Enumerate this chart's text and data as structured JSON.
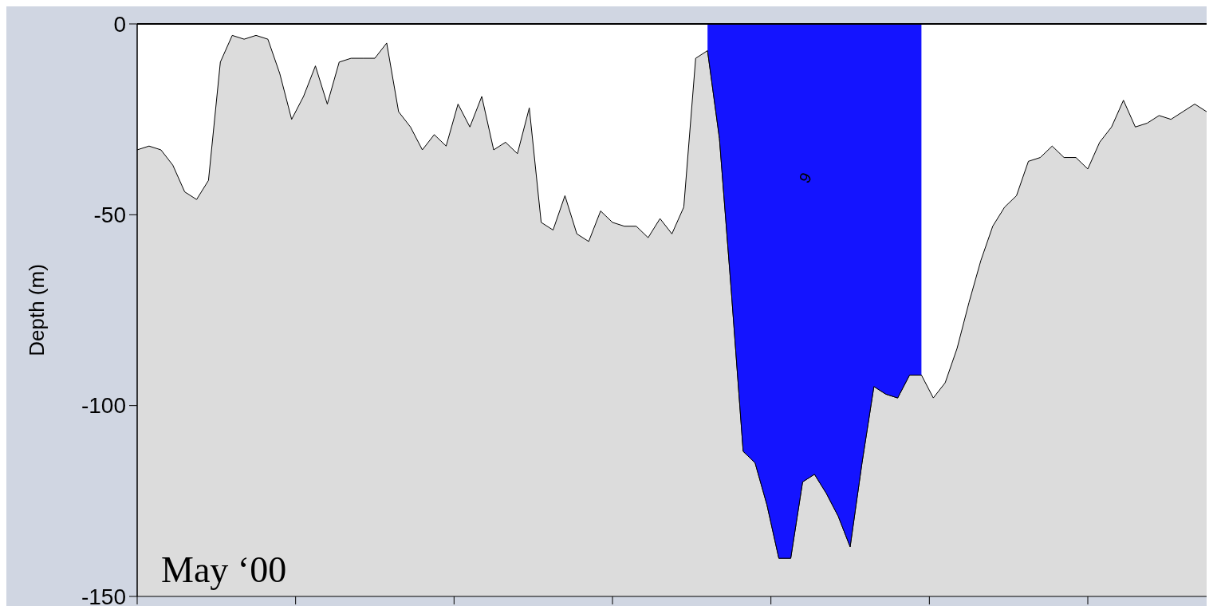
{
  "chart_data": {
    "type": "area",
    "ylabel": "Depth (m)",
    "categories": [
      null,
      null,
      null,
      null,
      null,
      null,
      null,
      null,
      null,
      null,
      null,
      null,
      null,
      null,
      null,
      null,
      null,
      null,
      null,
      null,
      null,
      null,
      null,
      null,
      null,
      null,
      null,
      null,
      null,
      null,
      null,
      null,
      null,
      null,
      null,
      null,
      null,
      null,
      null,
      null,
      null,
      null,
      null,
      null,
      null,
      null,
      null,
      null,
      null,
      null,
      null,
      null,
      null,
      null,
      null,
      null,
      null,
      null,
      null,
      null,
      null,
      null,
      null,
      null,
      null,
      null,
      null,
      null,
      null,
      null,
      null,
      null,
      null,
      null,
      null,
      null,
      null,
      null,
      null,
      null,
      null,
      null,
      null,
      null,
      null,
      null,
      null,
      null,
      null,
      null,
      null
    ],
    "ylim": [
      -150,
      0
    ],
    "yticks": [
      -150,
      -100,
      -50,
      0
    ],
    "tick_labels": "y",
    "annotations": [
      "May ‘00",
      "9"
    ],
    "series": [
      {
        "type": "area",
        "color": "#ffffff",
        "values": [
          -33,
          -32,
          -33,
          -37,
          -44,
          -46,
          -41,
          -10,
          -3,
          -4,
          -3,
          -4,
          -13,
          -25,
          -19,
          -11,
          -21,
          -10,
          -9,
          -9,
          -9,
          -5,
          -23,
          -27,
          -33,
          -29,
          -32,
          -21,
          -27,
          -19,
          -33,
          -31,
          -34,
          -22,
          -52,
          -54,
          -45,
          -55,
          -57,
          -49,
          -52,
          -53,
          -53,
          -56,
          -51,
          -55,
          -48,
          -9,
          -7,
          -30,
          -70,
          -112,
          -115,
          -126,
          -140,
          -140,
          -120,
          -118,
          -123,
          -129,
          -137,
          -115,
          -95,
          -97,
          -98,
          -92,
          -92,
          -98,
          -94,
          -85,
          -73,
          -62,
          -53,
          -48,
          -45,
          -36,
          -35,
          -32,
          -35,
          -35,
          -38,
          -31,
          -27,
          -20,
          -27,
          -26,
          -24,
          -25,
          -23,
          -21,
          -23
        ]
      },
      {
        "type": "area",
        "color": "#1414ff",
        "values": [
          null,
          null,
          null,
          null,
          null,
          null,
          null,
          null,
          null,
          null,
          null,
          null,
          null,
          null,
          null,
          null,
          null,
          null,
          null,
          null,
          null,
          null,
          null,
          null,
          null,
          null,
          null,
          null,
          null,
          null,
          null,
          null,
          null,
          null,
          null,
          null,
          null,
          null,
          null,
          null,
          null,
          null,
          null,
          null,
          null,
          null,
          null,
          null,
          -7,
          -30,
          -70,
          -112,
          -115,
          -126,
          -140,
          -140,
          -120,
          -118,
          -123,
          -129,
          -137,
          -115,
          -95,
          -97,
          -98,
          -92,
          -92,
          null,
          null,
          null,
          null,
          null,
          null,
          null,
          null,
          null,
          null,
          null,
          null,
          null,
          null,
          null,
          null,
          null,
          null,
          null,
          null,
          null,
          null,
          null,
          null
        ]
      }
    ]
  }
}
